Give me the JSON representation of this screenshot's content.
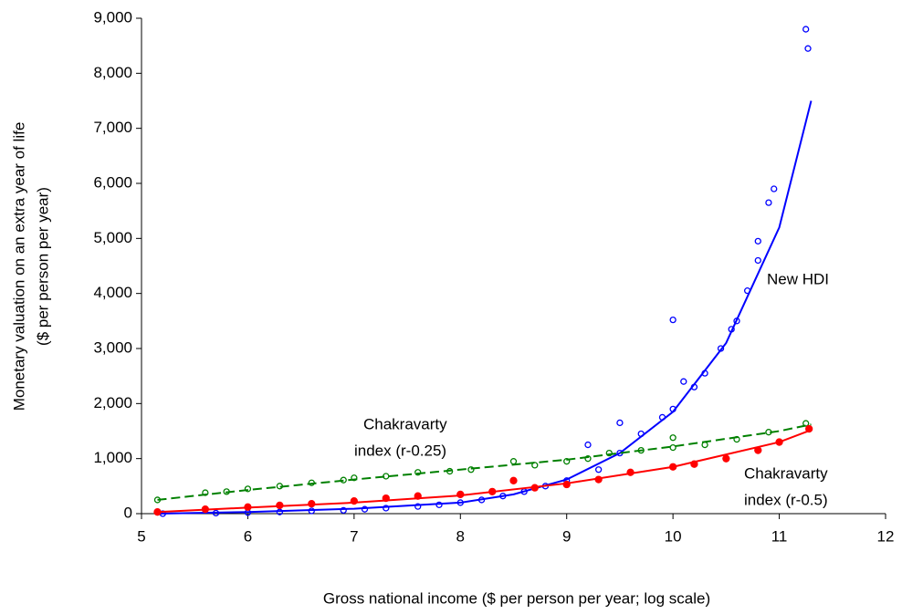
{
  "chart_data": {
    "type": "scatter",
    "y_label": [
      "Monetary valuation on an extra year of life",
      "($ per person per year)"
    ],
    "x_label": "Gross national income ($ per person per year; log scale)",
    "xlim": [
      5,
      12
    ],
    "xticks": [
      5,
      6,
      7,
      8,
      9,
      10,
      11,
      12
    ],
    "ylim": [
      0,
      9000
    ],
    "yticks": [
      0,
      {
        "value": 1000,
        "label": "1,000"
      },
      {
        "value": 2000,
        "label": "2,000"
      },
      {
        "value": 3000,
        "label": "3,000"
      },
      {
        "value": 4000,
        "label": "4,000"
      },
      {
        "value": 5000,
        "label": "5,000"
      },
      {
        "value": 6000,
        "label": "6,000"
      },
      {
        "value": 7000,
        "label": "7,000"
      },
      {
        "value": 8000,
        "label": "8,000"
      },
      {
        "value": 9000,
        "label": "9,000"
      }
    ],
    "annotations": [
      [
        "New HDI"
      ],
      [
        "Chakravarty",
        "index (r-0.25)"
      ],
      [
        "Chakravarty",
        "index (r-0.5)"
      ]
    ],
    "series": [
      {
        "color": "#0000ff",
        "marker": "open",
        "line_style": "solid",
        "x": [
          5.2,
          5.7,
          6,
          6.3,
          6.6,
          6.9,
          7.1,
          7.3,
          7.6,
          7.8,
          8,
          8.2,
          8.4,
          8.6,
          8.8,
          9,
          9.2,
          9.3,
          9.5,
          9.5,
          9.7,
          9.9,
          10,
          10,
          10.1,
          10.2,
          10.3,
          10.45,
          10.55,
          10.6,
          10.7,
          10.8,
          10.8,
          10.9,
          10.95,
          11.25,
          11.27
        ],
        "values": [
          0,
          10,
          20,
          30,
          50,
          60,
          80,
          100,
          130,
          160,
          200,
          250,
          320,
          400,
          500,
          600,
          1250,
          800,
          1650,
          1100,
          1450,
          1750,
          3520,
          1900,
          2400,
          2300,
          2550,
          3000,
          3350,
          3500,
          4050,
          4950,
          4600,
          5650,
          5900,
          8800,
          8450
        ],
        "fit_x": [
          5.15,
          6,
          7,
          8,
          8.5,
          9,
          9.5,
          10,
          10.5,
          11,
          11.3
        ],
        "fit_values": [
          0,
          30,
          90,
          200,
          350,
          620,
          1100,
          1850,
          3100,
          5200,
          7500
        ]
      },
      {
        "color": "#008000",
        "marker": "open",
        "line_style": "dashed",
        "x": [
          5.15,
          5.6,
          5.8,
          6,
          6.3,
          6.6,
          6.9,
          7,
          7.3,
          7.6,
          7.9,
          8.1,
          8.5,
          8.7,
          9,
          9.2,
          9.4,
          9.7,
          10,
          10,
          10.3,
          10.6,
          10.9,
          11.25
        ],
        "values": [
          250,
          380,
          400,
          450,
          500,
          560,
          610,
          650,
          680,
          750,
          770,
          800,
          950,
          880,
          950,
          1000,
          1100,
          1150,
          1200,
          1380,
          1250,
          1350,
          1480,
          1640
        ],
        "fit_x": [
          5.15,
          6,
          7,
          8,
          9,
          10,
          11,
          11.3
        ],
        "fit_values": [
          250,
          430,
          620,
          800,
          980,
          1220,
          1500,
          1620
        ]
      },
      {
        "color": "#ff0000",
        "marker": "filled",
        "line_style": "solid",
        "x": [
          5.15,
          5.6,
          6,
          6.3,
          6.6,
          7,
          7.3,
          7.6,
          8,
          8.3,
          8.5,
          8.7,
          9,
          9.3,
          9.6,
          10,
          10.2,
          10.5,
          10.8,
          11,
          11.28
        ],
        "values": [
          30,
          80,
          120,
          150,
          180,
          230,
          280,
          320,
          350,
          400,
          600,
          470,
          530,
          620,
          750,
          850,
          900,
          1000,
          1150,
          1300,
          1540
        ],
        "fit_x": [
          5.15,
          6,
          7,
          8,
          9,
          10,
          11,
          11.3
        ],
        "fit_values": [
          30,
          110,
          200,
          330,
          550,
          850,
          1300,
          1520
        ]
      }
    ]
  }
}
